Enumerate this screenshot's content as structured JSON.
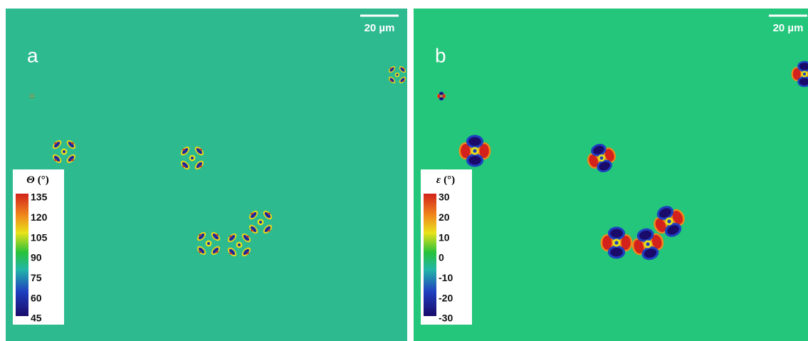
{
  "panels": [
    {
      "label": "a",
      "scale_bar": "20 µm",
      "colorbar": {
        "symbol": "Θ",
        "unit": "(°)",
        "ticks": [
          "135",
          "120",
          "105",
          "90",
          "75",
          "60",
          "45"
        ]
      }
    },
    {
      "label": "b",
      "scale_bar": "20 µm",
      "colorbar": {
        "symbol": "ε",
        "unit": "(°)",
        "ticks": [
          "30",
          "20",
          "10",
          "0",
          "-10",
          "-20",
          "-30"
        ]
      }
    }
  ]
}
